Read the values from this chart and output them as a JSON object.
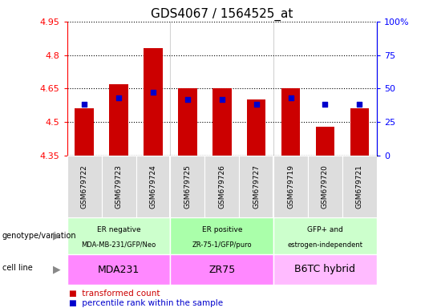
{
  "title": "GDS4067 / 1564525_at",
  "samples": [
    "GSM679722",
    "GSM679723",
    "GSM679724",
    "GSM679725",
    "GSM679726",
    "GSM679727",
    "GSM679719",
    "GSM679720",
    "GSM679721"
  ],
  "bar_values": [
    4.56,
    4.67,
    4.83,
    4.65,
    4.65,
    4.6,
    4.65,
    4.48,
    4.56
  ],
  "percentile_values": [
    38,
    43,
    47,
    42,
    42,
    38,
    43,
    38,
    38
  ],
  "bar_bottom": 4.35,
  "ylim": [
    4.35,
    4.95
  ],
  "y2lim": [
    0,
    100
  ],
  "yticks": [
    4.35,
    4.5,
    4.65,
    4.8,
    4.95
  ],
  "y2ticks": [
    0,
    25,
    50,
    75,
    100
  ],
  "bar_color": "#cc0000",
  "dot_color": "#0000cc",
  "groups": [
    {
      "label": "ER negative",
      "sublabel": "MDA-MB-231/GFP/Neo",
      "start": 0,
      "end": 3,
      "color": "#ccffcc"
    },
    {
      "label": "ER positive",
      "sublabel": "ZR-75-1/GFP/puro",
      "start": 3,
      "end": 6,
      "color": "#aaffaa"
    },
    {
      "label": "GFP+ and",
      "sublabel": "estrogen-independent",
      "start": 6,
      "end": 9,
      "color": "#ccffcc"
    }
  ],
  "cell_lines": [
    {
      "label": "MDA231",
      "start": 0,
      "end": 3,
      "color": "#ff88ff"
    },
    {
      "label": "ZR75",
      "start": 3,
      "end": 6,
      "color": "#ff88ff"
    },
    {
      "label": "B6TC hybrid",
      "start": 6,
      "end": 9,
      "color": "#ffbbff"
    }
  ],
  "genotype_label": "genotype/variation",
  "cellline_label": "cell line",
  "legend_bar": "transformed count",
  "legend_dot": "percentile rank within the sample",
  "bar_width": 0.55,
  "title_fontsize": 11
}
